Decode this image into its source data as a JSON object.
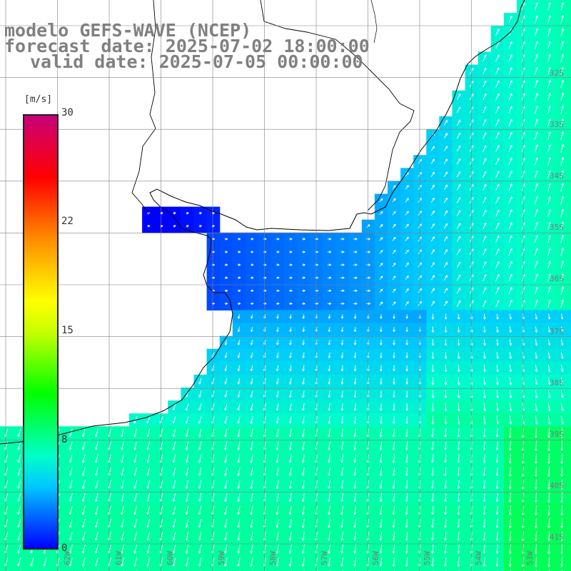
{
  "title": {
    "line1": "modelo GEFS-WAVE (NCEP)",
    "line2": "forecast date: 2025-07-02 18:00:00",
    "line3": "valid date: 2025-07-05 00:00:00"
  },
  "colorbar": {
    "unit": "[m/s]",
    "ticks": [
      "30",
      "22",
      "15",
      "8",
      "0"
    ],
    "tick_values": [
      30,
      22,
      15,
      8,
      0
    ],
    "range": [
      0,
      30
    ],
    "colors": [
      "#0000ff",
      "#0064ff",
      "#00c8ff",
      "#00ffc8",
      "#00ff64",
      "#00ff00",
      "#64ff00",
      "#c8ff00",
      "#ffff00",
      "#ffc800",
      "#ff8c00",
      "#ff4600",
      "#ff0000",
      "#e6003c",
      "#c80078"
    ]
  },
  "lat_labels": [
    "32S",
    "33S",
    "34S",
    "35S",
    "36S",
    "37S",
    "38S",
    "39S",
    "40S",
    "41S"
  ],
  "lon_labels": [
    "62W",
    "61W",
    "60W",
    "59W",
    "58W",
    "57W",
    "56W",
    "55W",
    "54W",
    "53W"
  ],
  "colors": {
    "land": "#ffffff",
    "coast": "#000000",
    "grid": "#808080",
    "arrow": "#ffffff",
    "title": "#808080",
    "deep_blue": "#1a3cf0",
    "mid_blue": "#1e78f5",
    "light_blue": "#1eb4f5",
    "cyan": "#1ed2f0"
  }
}
